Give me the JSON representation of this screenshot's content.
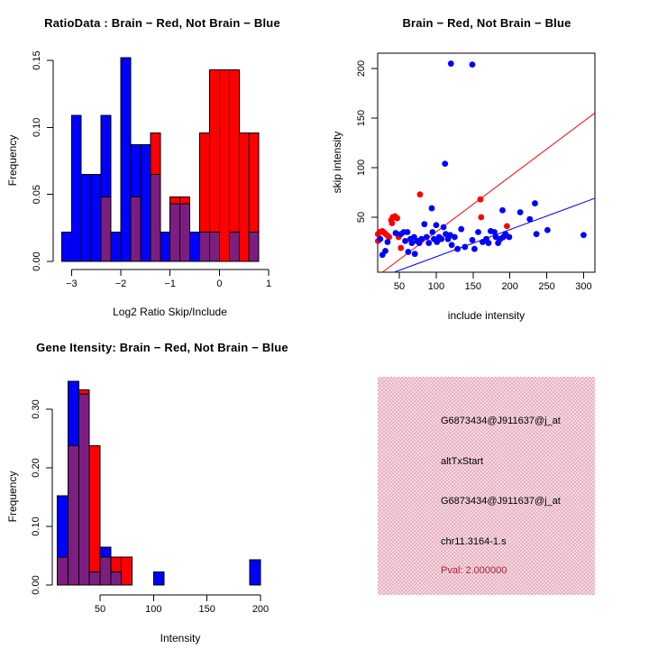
{
  "figure": {
    "bg": "#ffffff"
  },
  "chart_data": [
    {
      "type": "bar",
      "subtype": "overlapping-histogram",
      "title": "RatioData : Brain − Red, Not Brain − Blue",
      "xlabel": "Log2 Ratio Skip/Include",
      "ylabel": "Frequency",
      "bin_start": -3.2,
      "bin_width": 0.2,
      "overlap_color": "#7b1e80",
      "series": [
        {
          "name": "Not Brain (blue)",
          "color": "#0000ff",
          "values": [
            0.022,
            0.109,
            0.065,
            0.065,
            0.109,
            0.022,
            0.152,
            0.087,
            0.087,
            0.065,
            0.022,
            0.043,
            0.043,
            0.022,
            0.022,
            0.022,
            0,
            0.022,
            0,
            0.022
          ]
        },
        {
          "name": "Brain (red)",
          "color": "#ff0000",
          "values": [
            0,
            0,
            0,
            0,
            0.048,
            0,
            0,
            0.048,
            0,
            0.096,
            0,
            0.048,
            0.048,
            0,
            0.096,
            0.143,
            0.143,
            0.143,
            0.096,
            0.096
          ]
        }
      ],
      "xticks": [
        {
          "v": -3,
          "label": "−3"
        },
        {
          "v": -2,
          "label": "−2"
        },
        {
          "v": -1,
          "label": "−1"
        },
        {
          "v": 0,
          "label": "0"
        },
        {
          "v": 1,
          "label": "1"
        }
      ],
      "yticks": [
        {
          "v": 0,
          "label": "0.00"
        },
        {
          "v": 0.05,
          "label": "0.05"
        },
        {
          "v": 0.1,
          "label": "0.10"
        },
        {
          "v": 0.15,
          "label": "0.15"
        }
      ],
      "xlim": [
        -3.2,
        1.0
      ],
      "ylim": [
        0,
        0.152
      ],
      "grid": false
    },
    {
      "type": "scatter",
      "title": "Brain − Red, Not Brain − Blue",
      "xlabel": "include intensity",
      "ylabel": "skip intensity",
      "xlim": [
        20.6,
        315.4
      ],
      "ylim": [
        -5.5,
        215.5
      ],
      "xticks": [
        {
          "v": 50,
          "label": "50"
        },
        {
          "v": 100,
          "label": "100"
        },
        {
          "v": 150,
          "label": "150"
        },
        {
          "v": 200,
          "label": "200"
        },
        {
          "v": 250,
          "label": "250"
        },
        {
          "v": 300,
          "label": "300"
        }
      ],
      "yticks": [
        {
          "v": 50,
          "label": "50"
        },
        {
          "v": 100,
          "label": "100"
        },
        {
          "v": 150,
          "label": "150"
        },
        {
          "v": 200,
          "label": "200"
        }
      ],
      "series": [
        {
          "name": "Brain (red)",
          "color": "#ff0000",
          "points": [
            [
              21,
              33
            ],
            [
              23,
              35
            ],
            [
              27,
              36
            ],
            [
              30,
              34
            ],
            [
              21,
              26
            ],
            [
              33,
              32
            ],
            [
              36,
              30
            ],
            [
              39,
              47
            ],
            [
              41,
              50
            ],
            [
              44,
              51
            ],
            [
              47,
              49
            ],
            [
              49,
              30
            ],
            [
              40,
              44
            ],
            [
              52,
              19
            ],
            [
              78,
              73
            ],
            [
              160,
              68
            ],
            [
              161,
              50
            ],
            [
              196,
              41
            ]
          ]
        },
        {
          "name": "Not Brain (blue)",
          "color": "#0000ff",
          "points": [
            [
              24,
              28
            ],
            [
              27,
              12
            ],
            [
              31,
              16
            ],
            [
              34,
              25
            ],
            [
              45,
              34
            ],
            [
              52,
              33
            ],
            [
              56,
              35
            ],
            [
              58,
              26
            ],
            [
              61,
              35
            ],
            [
              62,
              15
            ],
            [
              65,
              28
            ],
            [
              67,
              24
            ],
            [
              70,
              30
            ],
            [
              71,
              13
            ],
            [
              74,
              26
            ],
            [
              77,
              24
            ],
            [
              80,
              28
            ],
            [
              84,
              43
            ],
            [
              87,
              30
            ],
            [
              90,
              24
            ],
            [
              94,
              59
            ],
            [
              95,
              35
            ],
            [
              97,
              28
            ],
            [
              100,
              42
            ],
            [
              101,
              25
            ],
            [
              104,
              30
            ],
            [
              107,
              28
            ],
            [
              110,
              40
            ],
            [
              112,
              104
            ],
            [
              113,
              33
            ],
            [
              116,
              28
            ],
            [
              119,
              32
            ],
            [
              120,
              205
            ],
            [
              121,
              22
            ],
            [
              125,
              30
            ],
            [
              129,
              18
            ],
            [
              134,
              38
            ],
            [
              139,
              20
            ],
            [
              149,
              204
            ],
            [
              149,
              27
            ],
            [
              152,
              18
            ],
            [
              157,
              35
            ],
            [
              163,
              25
            ],
            [
              168,
              28
            ],
            [
              171,
              24
            ],
            [
              174,
              36
            ],
            [
              179,
              35
            ],
            [
              181,
              30
            ],
            [
              184,
              24
            ],
            [
              187,
              28
            ],
            [
              190,
              57
            ],
            [
              191,
              30
            ],
            [
              194,
              33
            ],
            [
              199,
              30
            ],
            [
              214,
              55
            ],
            [
              227,
              48
            ],
            [
              234,
              64
            ],
            [
              236,
              33
            ],
            [
              251,
              37
            ],
            [
              300,
              32
            ]
          ]
        }
      ],
      "fit_lines": [
        {
          "name": "brain-fit-line",
          "color": "#ff0000",
          "x1": 27,
          "y1": -5.5,
          "x2": 315,
          "y2": 155
        },
        {
          "name": "not-brain-fit-line",
          "color": "#0000ff",
          "x1": 43,
          "y1": -5.5,
          "x2": 315,
          "y2": 69
        }
      ],
      "grid": false
    },
    {
      "type": "bar",
      "subtype": "overlapping-histogram",
      "title": "Gene Itensity: Brain − Red, Not Brain − Blue",
      "xlabel": "Intensity",
      "ylabel": "Frequency",
      "bin_start": 10,
      "bin_width": 10,
      "overlap_color": "#7b1e80",
      "series": [
        {
          "name": "Not Brain (blue)",
          "color": "#0000ff",
          "values": [
            0.152,
            0.348,
            0.326,
            0.022,
            0.065,
            0.022,
            0,
            0,
            0,
            0.022,
            0,
            0,
            0,
            0,
            0,
            0,
            0,
            0,
            0.043
          ]
        },
        {
          "name": "Brain (red)",
          "color": "#ff0000",
          "values": [
            0.048,
            0.238,
            0.333,
            0.238,
            0.048,
            0.048,
            0.048,
            0,
            0,
            0,
            0,
            0,
            0,
            0,
            0,
            0,
            0,
            0,
            0
          ]
        }
      ],
      "xticks": [
        {
          "v": 50,
          "label": "50"
        },
        {
          "v": 100,
          "label": "100"
        },
        {
          "v": 150,
          "label": "150"
        },
        {
          "v": 200,
          "label": "200"
        }
      ],
      "yticks": [
        {
          "v": 0,
          "label": "0.00"
        },
        {
          "v": 0.1,
          "label": "0.10"
        },
        {
          "v": 0.2,
          "label": "0.20"
        },
        {
          "v": 0.3,
          "label": "0.30"
        }
      ],
      "xlim": [
        10,
        200
      ],
      "ylim": [
        0,
        0.348
      ],
      "grid": false
    }
  ],
  "info_panel": {
    "bg_color": "#f6abbe",
    "bg_color_alt": "#e8e0e4",
    "lines": [
      {
        "text": "G6873434@J911637@j_at",
        "color": "#000000"
      },
      {
        "text": "altTxStart",
        "color": "#000000"
      },
      {
        "text": "G6873434@J911637@j_at",
        "color": "#000000"
      },
      {
        "text": "chr11.3164-1.s",
        "color": "#000000"
      },
      {
        "text": "Pval: 2.000000",
        "color": "#aa2232"
      }
    ]
  }
}
